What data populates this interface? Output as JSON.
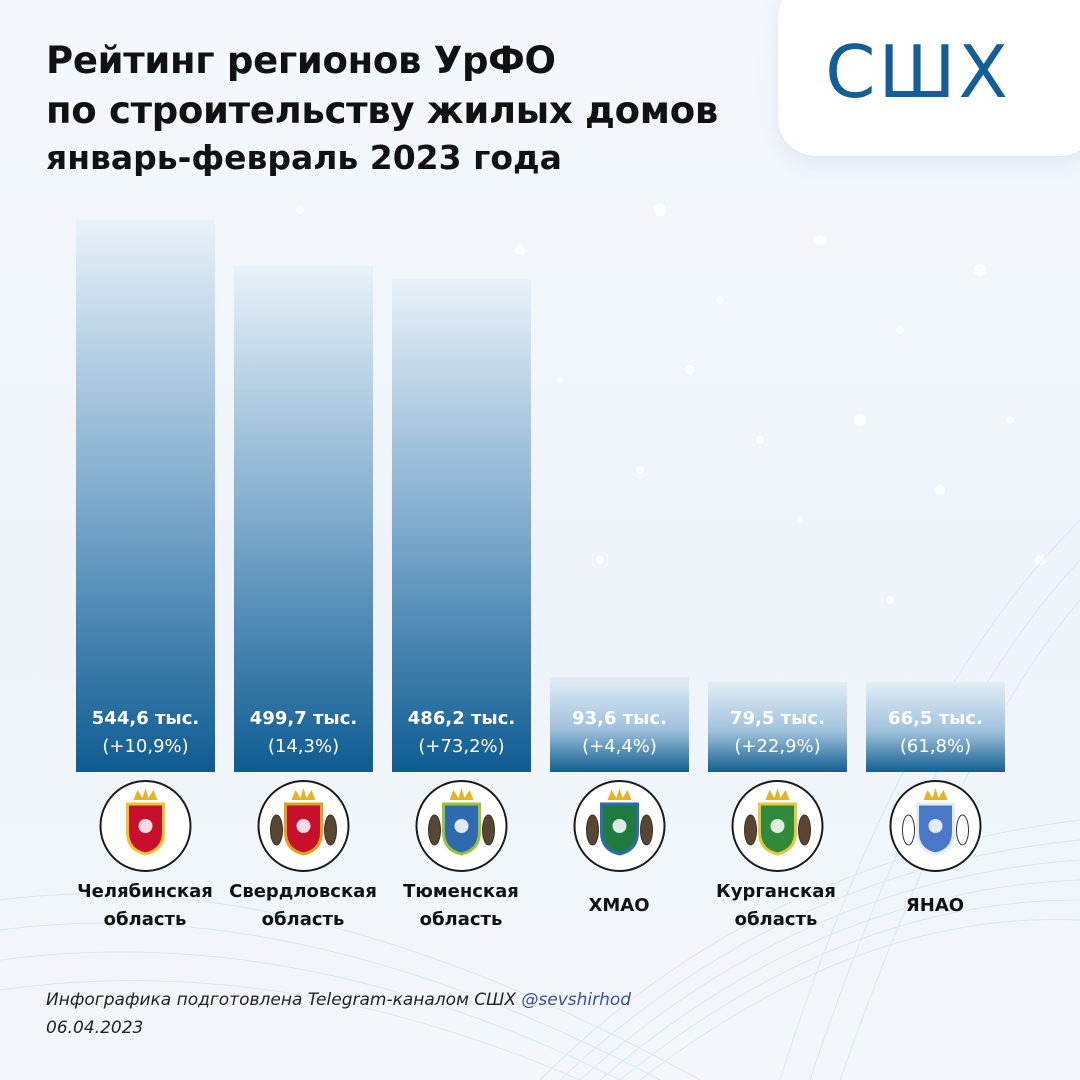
{
  "title": {
    "line1": "Рейтинг регионов УрФО",
    "line2": "по строительству жилых домов",
    "line3": "январь-февраль 2023 года"
  },
  "logo": {
    "text": "СШХ"
  },
  "chart_data": {
    "type": "bar",
    "title": "Рейтинг регионов УрФО по строительству жилых домов январь-февраль 2023 года",
    "categories": [
      "Челябинская область",
      "Свердловская область",
      "Тюменская область",
      "ХМАО",
      "Курганская область",
      "ЯНАО"
    ],
    "values": [
      544.6,
      499.7,
      486.2,
      93.6,
      79.5,
      66.5
    ],
    "value_labels": [
      "544,6 тыс.",
      "499,7 тыс.",
      "486,2 тыс.",
      "93,6 тыс.",
      "79,5 тыс.",
      "66,5 тыс."
    ],
    "change_labels": [
      "(+10,9%)",
      "(14,3%)",
      "(+73,2%)",
      "(+4,4%)",
      "(+22,9%)",
      "(61,8%)"
    ],
    "grid": false,
    "legend": "none"
  },
  "regions": [
    {
      "line1": "Челябинская",
      "line2": "область",
      "emblem_icon": "chelyabinsk-coat-of-arms-icon"
    },
    {
      "line1": "Свердловская",
      "line2": "область",
      "emblem_icon": "sverdlovsk-coat-of-arms-icon"
    },
    {
      "line1": "Тюменская",
      "line2": "область",
      "emblem_icon": "tyumen-coat-of-arms-icon"
    },
    {
      "line1": "ХМАО",
      "line2": "",
      "emblem_icon": "khmao-coat-of-arms-icon"
    },
    {
      "line1": "Курганская",
      "line2": "область",
      "emblem_icon": "kurgan-coat-of-arms-icon"
    },
    {
      "line1": "ЯНАО",
      "line2": "",
      "emblem_icon": "yanao-coat-of-arms-icon"
    }
  ],
  "footer": {
    "text": "Инфографика подготовлена Telegram-каналом СШХ",
    "handle": "@sevshirhod",
    "date": "06.04.2023"
  },
  "colors": {
    "bar_top": "#e6f0f8",
    "bar_bottom": "#0f5f95",
    "brand": "#135d98",
    "text": "#111111"
  }
}
